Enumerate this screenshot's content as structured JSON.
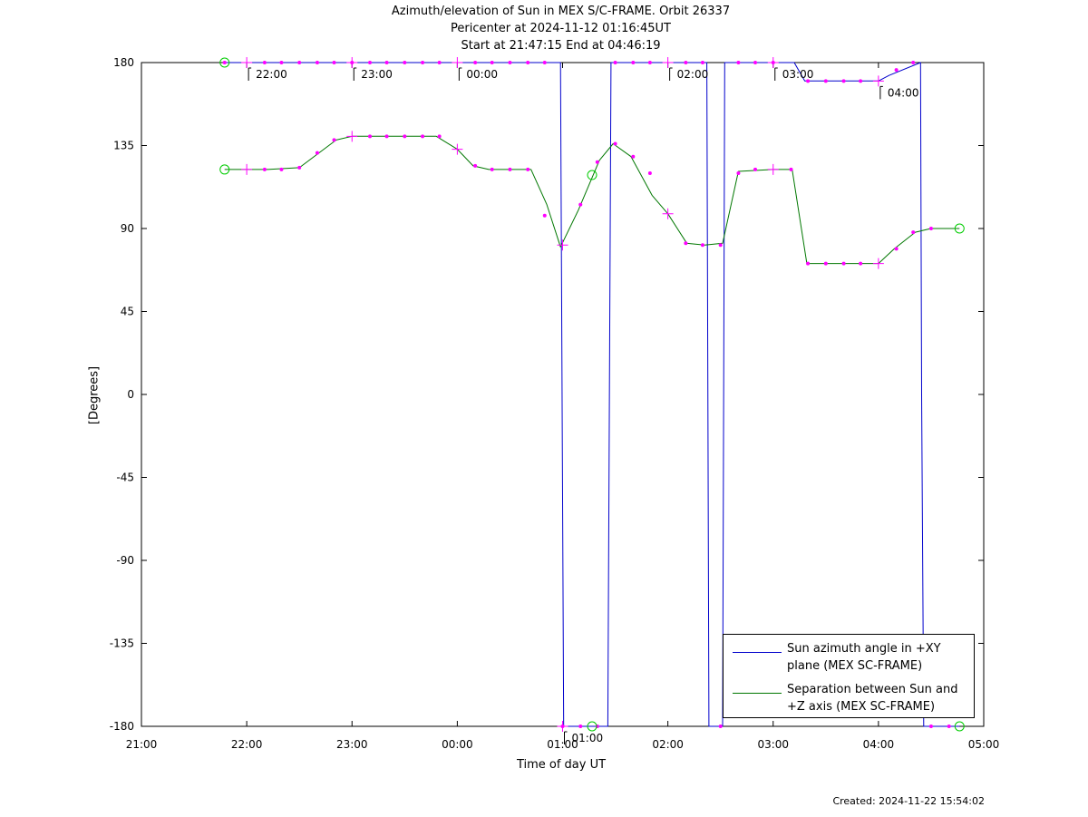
{
  "chart_data": {
    "type": "line",
    "title": "Azimuth/elevation of Sun in MEX S/C-FRAME.  Orbit 26337",
    "subtitle_1": "Pericenter at 2024-11-12 01:16:45UT",
    "subtitle_2": "Start at 21:47:15 End at 04:46:19",
    "xlabel": "Time of day UT",
    "ylabel": "[Degrees]",
    "xlim": [
      21.0,
      29.0
    ],
    "ylim": [
      -180,
      180
    ],
    "x_tick_labels": [
      "21:00",
      "22:00",
      "23:00",
      "00:00",
      "01:00",
      "02:00",
      "03:00",
      "04:00",
      "05:00"
    ],
    "y_ticks": [
      180,
      135,
      90,
      45,
      0,
      -45,
      -90,
      -135,
      -180
    ],
    "grid": false,
    "legend_position": "bottom-right",
    "colors": {
      "azimuth": "#0000cc",
      "separation": "#007700",
      "markers": "#ff00ff",
      "endpoints": "#00cc00"
    },
    "series": [
      {
        "name": "Sun azimuth angle in +XY plane (MEX SC-FRAME)",
        "color": "#0000cc",
        "x": [
          21.79,
          24.98,
          25.01,
          25.23,
          25.43,
          25.46,
          26.37,
          26.39,
          26.52,
          26.54,
          27.2,
          27.3,
          27.6,
          28.0,
          28.1,
          28.4,
          28.41,
          28.43,
          28.77
        ],
        "y": [
          180,
          180,
          -180,
          -180,
          -180,
          180,
          180,
          -180,
          -180,
          180,
          180,
          170,
          170,
          170,
          173,
          180,
          0,
          -180,
          -180
        ]
      },
      {
        "name": "Separation between Sun and +Z axis (MEX SC-FRAME)",
        "color": "#007700",
        "x": [
          21.79,
          22.2,
          22.5,
          22.85,
          23.0,
          23.5,
          23.8,
          24.0,
          24.15,
          24.3,
          24.7,
          24.85,
          24.98,
          25.15,
          25.35,
          25.48,
          25.65,
          25.85,
          26.0,
          26.18,
          26.35,
          26.52,
          26.67,
          27.0,
          27.18,
          27.32,
          27.6,
          28.0,
          28.15,
          28.35,
          28.5,
          28.77
        ],
        "y": [
          122,
          122,
          123,
          138,
          140,
          140,
          140,
          133,
          124,
          122,
          122,
          103,
          80,
          100,
          127,
          136,
          129,
          108,
          98,
          82,
          81,
          82,
          121,
          122,
          122,
          71,
          71,
          71,
          79,
          88,
          90,
          90
        ]
      }
    ],
    "markers": {
      "dots": [
        {
          "x": 21.79,
          "y": 180
        },
        {
          "x": 22.17,
          "y": 180
        },
        {
          "x": 22.33,
          "y": 180
        },
        {
          "x": 22.5,
          "y": 180
        },
        {
          "x": 22.67,
          "y": 180
        },
        {
          "x": 22.83,
          "y": 180
        },
        {
          "x": 23.0,
          "y": 180
        },
        {
          "x": 23.17,
          "y": 180
        },
        {
          "x": 23.33,
          "y": 180
        },
        {
          "x": 23.5,
          "y": 180
        },
        {
          "x": 23.67,
          "y": 180
        },
        {
          "x": 23.83,
          "y": 180
        },
        {
          "x": 24.17,
          "y": 180
        },
        {
          "x": 24.33,
          "y": 180
        },
        {
          "x": 24.5,
          "y": 180
        },
        {
          "x": 24.67,
          "y": 180
        },
        {
          "x": 24.83,
          "y": 180
        },
        {
          "x": 25.5,
          "y": 180
        },
        {
          "x": 25.67,
          "y": 180
        },
        {
          "x": 25.83,
          "y": 180
        },
        {
          "x": 26.17,
          "y": 180
        },
        {
          "x": 26.33,
          "y": 180
        },
        {
          "x": 26.67,
          "y": 180
        },
        {
          "x": 26.83,
          "y": 180
        },
        {
          "x": 27.0,
          "y": 180
        },
        {
          "x": 27.33,
          "y": 170
        },
        {
          "x": 27.5,
          "y": 170
        },
        {
          "x": 27.67,
          "y": 170
        },
        {
          "x": 27.83,
          "y": 170
        },
        {
          "x": 28.17,
          "y": 176
        },
        {
          "x": 28.33,
          "y": 180
        },
        {
          "x": 25.0,
          "y": -180
        },
        {
          "x": 25.17,
          "y": -180
        },
        {
          "x": 25.33,
          "y": -180
        },
        {
          "x": 26.5,
          "y": -180
        },
        {
          "x": 28.5,
          "y": -180
        },
        {
          "x": 28.67,
          "y": -180
        },
        {
          "x": 22.17,
          "y": 122
        },
        {
          "x": 22.33,
          "y": 122
        },
        {
          "x": 22.5,
          "y": 123
        },
        {
          "x": 22.67,
          "y": 131
        },
        {
          "x": 22.83,
          "y": 138
        },
        {
          "x": 23.17,
          "y": 140
        },
        {
          "x": 23.33,
          "y": 140
        },
        {
          "x": 23.5,
          "y": 140
        },
        {
          "x": 23.67,
          "y": 140
        },
        {
          "x": 23.83,
          "y": 140
        },
        {
          "x": 24.17,
          "y": 124
        },
        {
          "x": 24.33,
          "y": 122
        },
        {
          "x": 24.5,
          "y": 122
        },
        {
          "x": 24.67,
          "y": 122
        },
        {
          "x": 24.83,
          "y": 97
        },
        {
          "x": 25.17,
          "y": 103
        },
        {
          "x": 25.33,
          "y": 126
        },
        {
          "x": 25.5,
          "y": 136
        },
        {
          "x": 25.67,
          "y": 129
        },
        {
          "x": 25.83,
          "y": 120
        },
        {
          "x": 26.17,
          "y": 82
        },
        {
          "x": 26.33,
          "y": 81
        },
        {
          "x": 26.5,
          "y": 81
        },
        {
          "x": 26.67,
          "y": 120
        },
        {
          "x": 26.83,
          "y": 122
        },
        {
          "x": 27.17,
          "y": 122
        },
        {
          "x": 27.33,
          "y": 71
        },
        {
          "x": 27.5,
          "y": 71
        },
        {
          "x": 27.67,
          "y": 71
        },
        {
          "x": 27.83,
          "y": 71
        },
        {
          "x": 28.17,
          "y": 79
        },
        {
          "x": 28.33,
          "y": 88
        },
        {
          "x": 28.5,
          "y": 90
        }
      ],
      "hour_crosses": [
        {
          "x": 22.0,
          "y": 180
        },
        {
          "x": 23.0,
          "y": 180
        },
        {
          "x": 24.0,
          "y": 180
        },
        {
          "x": 26.0,
          "y": 180
        },
        {
          "x": 27.0,
          "y": 180
        },
        {
          "x": 28.0,
          "y": 170
        },
        {
          "x": 25.0,
          "y": -180
        },
        {
          "x": 22.0,
          "y": 122
        },
        {
          "x": 23.0,
          "y": 140
        },
        {
          "x": 24.0,
          "y": 133
        },
        {
          "x": 25.0,
          "y": 81
        },
        {
          "x": 26.0,
          "y": 98
        },
        {
          "x": 27.0,
          "y": 122
        },
        {
          "x": 28.0,
          "y": 71
        }
      ],
      "circles": [
        {
          "x": 21.79,
          "y": 180
        },
        {
          "x": 21.79,
          "y": 122
        },
        {
          "x": 25.28,
          "y": 119
        },
        {
          "x": 25.28,
          "y": -180
        },
        {
          "x": 28.77,
          "y": 90
        },
        {
          "x": 28.77,
          "y": -180
        }
      ]
    },
    "annotations": [
      {
        "text": "22:00",
        "x": 22.0,
        "y": 180
      },
      {
        "text": "23:00",
        "x": 23.0,
        "y": 180
      },
      {
        "text": "00:00",
        "x": 24.0,
        "y": 180
      },
      {
        "text": "01:00",
        "x": 25.0,
        "y": -180
      },
      {
        "text": "02:00",
        "x": 26.0,
        "y": 180
      },
      {
        "text": "03:00",
        "x": 27.0,
        "y": 180
      },
      {
        "text": "04:00",
        "x": 28.0,
        "y": 170
      }
    ],
    "legend": [
      {
        "line1": "Sun azimuth angle in +XY",
        "line2": "plane (MEX SC-FRAME)"
      },
      {
        "line1": "Separation between Sun and",
        "line2": "+Z axis (MEX SC-FRAME)"
      }
    ]
  },
  "footer": {
    "created": "Created: 2024-11-22 15:54:02"
  }
}
